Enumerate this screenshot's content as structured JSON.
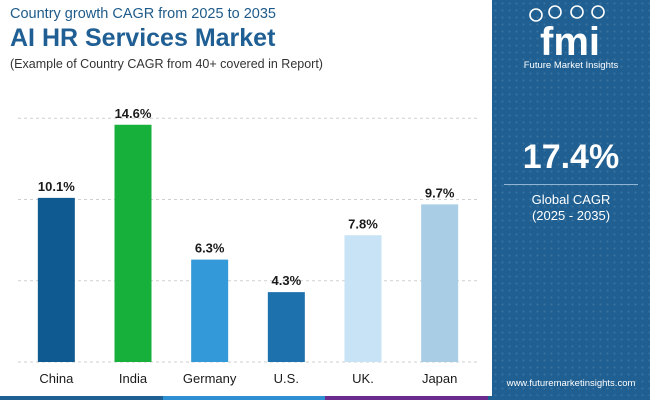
{
  "header": {
    "supertitle": "Country growth CAGR from 2025 to 2035",
    "title": "AI HR Services Market",
    "subtitle": "(Example of Country CAGR from 40+ covered in Report)"
  },
  "sidebar": {
    "brand_logo_text": "fmi",
    "brand_name": "Future Market Insights",
    "global_cagr": "17.4%",
    "cagr_label": "Global CAGR",
    "cagr_period": "(2025 - 2035)",
    "url": "www.futuremarketinsights.com"
  },
  "colors": {
    "sidebar_bg": "#1f5f91",
    "title": "#1f5f94",
    "strip": [
      "#1f5f91",
      "#2e8fd3",
      "#6c2b8f",
      "#1f5f91"
    ]
  },
  "chart_data": {
    "type": "bar",
    "title": "AI HR Services Market",
    "xlabel": "",
    "ylabel": "",
    "ylim": [
      0,
      16
    ],
    "grid": true,
    "categories": [
      "China",
      "India",
      "Germany",
      "U.S.",
      "UK.",
      "Japan"
    ],
    "values": [
      10.1,
      14.6,
      6.3,
      4.3,
      7.8,
      9.7
    ],
    "labels": [
      "10.1%",
      "14.6%",
      "6.3%",
      "4.3%",
      "7.8%",
      "9.7%"
    ],
    "colors": [
      "#0f5a91",
      "#16b03b",
      "#3399d8",
      "#1d71ad",
      "#c7e3f5",
      "#a8cde5"
    ]
  }
}
